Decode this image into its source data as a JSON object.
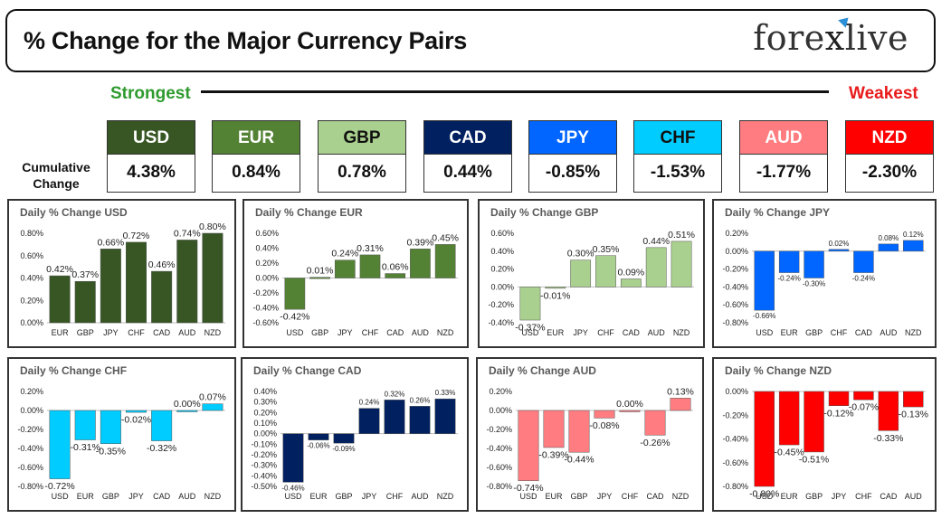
{
  "header": {
    "title": "% Change for the Major Currency Pairs",
    "logo_text": "forexlive"
  },
  "strength": {
    "strongest": "Strongest",
    "weakest": "Weakest",
    "cumulative_label": "Cumulative Change"
  },
  "currencies": [
    {
      "name": "USD",
      "value": "4.38%",
      "bg": "#375623",
      "fg": "#ffffff"
    },
    {
      "name": "EUR",
      "value": "0.84%",
      "bg": "#548235",
      "fg": "#ffffff"
    },
    {
      "name": "GBP",
      "value": "0.78%",
      "bg": "#a9d08e",
      "fg": "#111111"
    },
    {
      "name": "CAD",
      "value": "0.44%",
      "bg": "#002060",
      "fg": "#ffffff"
    },
    {
      "name": "JPY",
      "value": "-0.85%",
      "bg": "#0066ff",
      "fg": "#ffffff"
    },
    {
      "name": "CHF",
      "value": "-1.53%",
      "bg": "#00ccff",
      "fg": "#111111"
    },
    {
      "name": "AUD",
      "value": "-1.77%",
      "bg": "#ff7c80",
      "fg": "#ffffff"
    },
    {
      "name": "NZD",
      "value": "-2.30%",
      "bg": "#ff0000",
      "fg": "#ffffff"
    }
  ],
  "chart_data": [
    {
      "type": "bar",
      "title": "Daily % Change USD",
      "color": "#375623",
      "categories": [
        "EUR",
        "GBP",
        "JPY",
        "CHF",
        "CAD",
        "AUD",
        "NZD"
      ],
      "values": [
        0.42,
        0.37,
        0.66,
        0.72,
        0.46,
        0.74,
        0.8
      ],
      "labels": [
        "0.42%",
        "0.37%",
        "0.66%",
        "0.72%",
        "0.46%",
        "0.74%",
        "0.80%"
      ],
      "ylim": [
        0,
        0.8
      ],
      "yticks": [
        {
          "v": 0.8,
          "t": "0.80%"
        },
        {
          "v": 0.6,
          "t": "0.60%"
        },
        {
          "v": 0.4,
          "t": "0.40%"
        },
        {
          "v": 0.2,
          "t": "0.20%"
        },
        {
          "v": 0,
          "t": "0.00%"
        }
      ]
    },
    {
      "type": "bar",
      "title": "Daily % Change EUR",
      "color": "#548235",
      "categories": [
        "USD",
        "GBP",
        "JPY",
        "CHF",
        "CAD",
        "AUD",
        "NZD"
      ],
      "values": [
        -0.42,
        0.01,
        0.24,
        0.31,
        0.06,
        0.39,
        0.45
      ],
      "labels": [
        "-0.42%",
        "0.01%",
        "0.24%",
        "0.31%",
        "0.06%",
        "0.39%",
        "0.45%"
      ],
      "ylim": [
        -0.6,
        0.6
      ],
      "yticks": [
        {
          "v": 0.6,
          "t": "0.60%"
        },
        {
          "v": 0.4,
          "t": "0.40%"
        },
        {
          "v": 0.2,
          "t": "0.20%"
        },
        {
          "v": 0,
          "t": "0.00%"
        },
        {
          "v": -0.2,
          "t": "-0.20%"
        },
        {
          "v": -0.4,
          "t": "-0.40%"
        },
        {
          "v": -0.6,
          "t": "-0.60%"
        }
      ]
    },
    {
      "type": "bar",
      "title": "Daily % Change GBP",
      "color": "#a9d08e",
      "categories": [
        "USD",
        "EUR",
        "JPY",
        "CHF",
        "CAD",
        "AUD",
        "NZD"
      ],
      "values": [
        -0.37,
        -0.01,
        0.3,
        0.35,
        0.09,
        0.44,
        0.51
      ],
      "labels": [
        "-0.37%",
        "-0.01%",
        "0.30%",
        "0.35%",
        "0.09%",
        "0.44%",
        "0.51%"
      ],
      "ylim": [
        -0.4,
        0.6
      ],
      "yticks": [
        {
          "v": 0.6,
          "t": "0.60%"
        },
        {
          "v": 0.4,
          "t": "0.40%"
        },
        {
          "v": 0.2,
          "t": "0.20%"
        },
        {
          "v": 0,
          "t": "0.00%"
        },
        {
          "v": -0.2,
          "t": "-0.20%"
        },
        {
          "v": -0.4,
          "t": "-0.40%"
        }
      ]
    },
    {
      "type": "bar",
      "title": "Daily % Change JPY",
      "color": "#0066ff",
      "categories": [
        "USD",
        "EUR",
        "GBP",
        "CHF",
        "CAD",
        "AUD",
        "NZD"
      ],
      "values": [
        -0.66,
        -0.24,
        -0.3,
        0.02,
        -0.24,
        0.08,
        0.12
      ],
      "labels": [
        "-0.66%",
        "-0.24%",
        "-0.30%",
        "0.02%",
        "-0.24%",
        "0.08%",
        "0.12%"
      ],
      "ylim": [
        -0.8,
        0.2
      ],
      "yticks": [
        {
          "v": 0.2,
          "t": "0.20%"
        },
        {
          "v": 0,
          "t": "0.00%"
        },
        {
          "v": -0.2,
          "t": "-0.20%"
        },
        {
          "v": -0.4,
          "t": "-0.40%"
        },
        {
          "v": -0.6,
          "t": "-0.60%"
        },
        {
          "v": -0.8,
          "t": "-0.80%"
        }
      ]
    },
    {
      "type": "bar",
      "title": "Daily % Change CHF",
      "color": "#00ccff",
      "categories": [
        "USD",
        "EUR",
        "GBP",
        "JPY",
        "CAD",
        "AUD",
        "NZD"
      ],
      "values": [
        -0.72,
        -0.31,
        -0.35,
        -0.02,
        -0.32,
        0.0,
        0.07
      ],
      "labels": [
        "-0.72%",
        "-0.31%",
        "-0.35%",
        "-0.02%",
        "-0.32%",
        "0.00%",
        "0.07%"
      ],
      "ylim": [
        -0.8,
        0.2
      ],
      "yticks": [
        {
          "v": 0.2,
          "t": "0.20%"
        },
        {
          "v": 0,
          "t": "0.00%"
        },
        {
          "v": -0.2,
          "t": "-0.20%"
        },
        {
          "v": -0.4,
          "t": "-0.40%"
        },
        {
          "v": -0.6,
          "t": "-0.60%"
        },
        {
          "v": -0.8,
          "t": "-0.80%"
        }
      ]
    },
    {
      "type": "bar",
      "title": "Daily % Change CAD",
      "color": "#002060",
      "categories": [
        "USD",
        "EUR",
        "GBP",
        "JPY",
        "CHF",
        "AUD",
        "NZD"
      ],
      "values": [
        -0.46,
        -0.06,
        -0.09,
        0.24,
        0.32,
        0.26,
        0.33
      ],
      "labels": [
        "-0.46%",
        "-0.06%",
        "-0.09%",
        "0.24%",
        "0.32%",
        "0.26%",
        "0.33%"
      ],
      "ylim": [
        -0.5,
        0.4
      ],
      "yticks": [
        {
          "v": 0.4,
          "t": "0.40%"
        },
        {
          "v": 0.3,
          "t": "0.30%"
        },
        {
          "v": 0.2,
          "t": "0.20%"
        },
        {
          "v": 0.1,
          "t": "0.10%"
        },
        {
          "v": 0,
          "t": "0.00%"
        },
        {
          "v": -0.1,
          "t": "-0.10%"
        },
        {
          "v": -0.2,
          "t": "-0.20%"
        },
        {
          "v": -0.3,
          "t": "-0.30%"
        },
        {
          "v": -0.4,
          "t": "-0.40%"
        },
        {
          "v": -0.5,
          "t": "-0.50%"
        }
      ]
    },
    {
      "type": "bar",
      "title": "Daily % Change AUD",
      "color": "#ff7c80",
      "categories": [
        "USD",
        "EUR",
        "GBP",
        "JPY",
        "CHF",
        "CAD",
        "NZD"
      ],
      "values": [
        -0.74,
        -0.39,
        -0.44,
        -0.08,
        0.0,
        -0.26,
        0.13
      ],
      "labels": [
        "-0.74%",
        "-0.39%",
        "-0.44%",
        "-0.08%",
        "0.00%",
        "-0.26%",
        "0.13%"
      ],
      "ylim": [
        -0.8,
        0.2
      ],
      "yticks": [
        {
          "v": 0.2,
          "t": "0.20%"
        },
        {
          "v": 0,
          "t": "0.00%"
        },
        {
          "v": -0.2,
          "t": "-0.20%"
        },
        {
          "v": -0.4,
          "t": "-0.40%"
        },
        {
          "v": -0.6,
          "t": "-0.60%"
        },
        {
          "v": -0.8,
          "t": "-0.80%"
        }
      ]
    },
    {
      "type": "bar",
      "title": "Daily % Change NZD",
      "color": "#ff0000",
      "categories": [
        "USD",
        "EUR",
        "GBP",
        "JPY",
        "CHF",
        "CAD",
        "AUD"
      ],
      "values": [
        -0.8,
        -0.45,
        -0.51,
        -0.12,
        -0.07,
        -0.33,
        -0.13
      ],
      "labels": [
        "-0.80%",
        "-0.45%",
        "-0.51%",
        "-0.12%",
        "-0.07%",
        "-0.33%",
        "-0.13%"
      ],
      "ylim": [
        -0.8,
        0
      ],
      "yticks": [
        {
          "v": 0,
          "t": "0.00%"
        },
        {
          "v": -0.2,
          "t": "-0.20%"
        },
        {
          "v": -0.4,
          "t": "-0.40%"
        },
        {
          "v": -0.6,
          "t": "-0.60%"
        },
        {
          "v": -0.8,
          "t": "-0.80%"
        }
      ]
    }
  ]
}
